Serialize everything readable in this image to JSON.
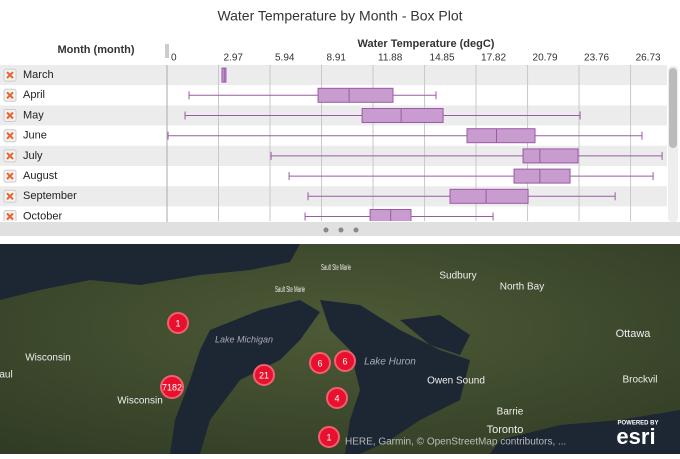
{
  "title": "Water Temperature by Month - Box Plot",
  "chart_data": {
    "type": "box",
    "row_header": "Month (month)",
    "x_label": "Water Temperature (degC)",
    "categories": [
      "March",
      "April",
      "May",
      "June",
      "July",
      "August",
      "September",
      "October"
    ],
    "xlim": [
      0,
      28.6
    ],
    "xticks": [
      0,
      2.97,
      5.94,
      8.91,
      11.88,
      14.85,
      17.82,
      20.79,
      23.76,
      26.73
    ],
    "color": "#c89ccf",
    "edge_color": "#9a5aa6",
    "boxes": [
      {
        "min": 3.17,
        "q1": 3.17,
        "median": 3.3,
        "q3": 3.4,
        "max": 3.4
      },
      {
        "min": 1.27,
        "q1": 8.71,
        "median": 10.5,
        "q3": 13.03,
        "max": 15.51
      },
      {
        "min": 1.04,
        "q1": 11.25,
        "median": 13.5,
        "q3": 15.92,
        "max": 23.82
      },
      {
        "min": 0.06,
        "q1": 17.3,
        "median": 19.0,
        "q3": 21.22,
        "max": 27.39
      },
      {
        "min": 6.0,
        "q1": 20.53,
        "median": 21.5,
        "q3": 23.7,
        "max": 28.55
      },
      {
        "min": 7.04,
        "q1": 20.01,
        "median": 21.5,
        "q3": 23.24,
        "max": 28.03
      },
      {
        "min": 8.13,
        "q1": 16.32,
        "median": 18.4,
        "q3": 20.82,
        "max": 25.84
      },
      {
        "min": 7.96,
        "q1": 11.71,
        "median": 12.9,
        "q3": 14.07,
        "max": 18.8
      }
    ]
  },
  "map": {
    "places": [
      "Sault Ste Marie",
      "Sault Ste Marie",
      "Sudbury",
      "North Bay",
      "Ottawa",
      "Lake Michigan",
      "Wisconsin",
      "Wisconsin",
      "aul",
      "Lake Huron",
      "Owen Sound",
      "Barrie",
      "Brockvil",
      "Toronto"
    ],
    "clusters": [
      "1",
      "7182",
      "21",
      "6",
      "6",
      "4",
      "1"
    ],
    "attribution": "HERE, Garmin, © OpenStreetMap contributors, ...",
    "logo_caption": "POWERED BY",
    "logo": "esri"
  }
}
